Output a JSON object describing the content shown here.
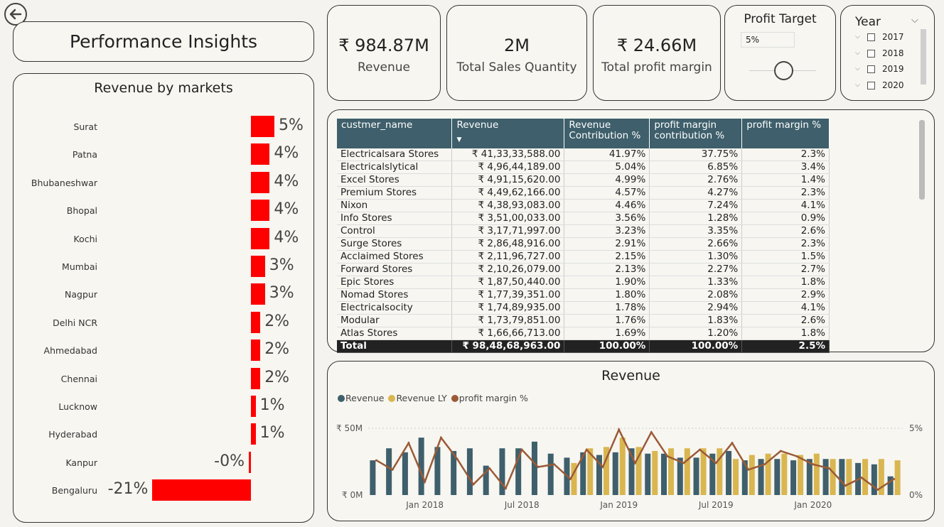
{
  "title": "Performance Insights",
  "markets": {
    "heading": "Revenue by markets",
    "rows": [
      {
        "name": "Surat",
        "value": 5,
        "label": "5%"
      },
      {
        "name": "Patna",
        "value": 4,
        "label": "4%"
      },
      {
        "name": "Bhubaneshwar",
        "value": 4,
        "label": "4%"
      },
      {
        "name": "Bhopal",
        "value": 4,
        "label": "4%"
      },
      {
        "name": "Kochi",
        "value": 4,
        "label": "4%"
      },
      {
        "name": "Mumbai",
        "value": 3,
        "label": "3%"
      },
      {
        "name": "Nagpur",
        "value": 3,
        "label": "3%"
      },
      {
        "name": "Delhi NCR",
        "value": 2,
        "label": "2%"
      },
      {
        "name": "Ahmedabad",
        "value": 2,
        "label": "2%"
      },
      {
        "name": "Chennai",
        "value": 2,
        "label": "2%"
      },
      {
        "name": "Lucknow",
        "value": 1,
        "label": "1%"
      },
      {
        "name": "Hyderabad",
        "value": 1,
        "label": "1%"
      },
      {
        "name": "Kanpur",
        "value": -0.3,
        "label": "-0%"
      },
      {
        "name": "Bengaluru",
        "value": -21,
        "label": "-21%"
      }
    ]
  },
  "kpis": [
    {
      "value": "₹ 984.87M",
      "label": "Revenue"
    },
    {
      "value": "2M",
      "label": "Total Sales Quantity"
    },
    {
      "value": "₹ 24.66M",
      "label": "Total profit margin"
    }
  ],
  "profit_target": {
    "title": "Profit Target",
    "value": "5%",
    "level": 0.5
  },
  "year_filter": {
    "title": "Year",
    "options": [
      "2017",
      "2018",
      "2019",
      "2020"
    ]
  },
  "table": {
    "headers": [
      "custmer_name",
      "Revenue",
      "Revenue Contribution %",
      "profit margin contribution %",
      "profit margin %"
    ],
    "rows": [
      [
        "Electricalsara Stores",
        "₹ 41,33,33,588.00",
        "41.97%",
        "37.75%",
        "2.3%"
      ],
      [
        "Electricalslytical",
        "₹ 4,96,44,189.00",
        "5.04%",
        "6.85%",
        "3.4%"
      ],
      [
        "Excel Stores",
        "₹ 4,91,15,620.00",
        "4.99%",
        "2.76%",
        "1.4%"
      ],
      [
        "Premium Stores",
        "₹ 4,49,62,166.00",
        "4.57%",
        "4.27%",
        "2.3%"
      ],
      [
        "Nixon",
        "₹ 4,38,93,083.00",
        "4.46%",
        "7.24%",
        "4.1%"
      ],
      [
        "Info Stores",
        "₹ 3,51,00,033.00",
        "3.56%",
        "1.28%",
        "0.9%"
      ],
      [
        "Control",
        "₹ 3,17,71,997.00",
        "3.23%",
        "3.35%",
        "2.6%"
      ],
      [
        "Surge Stores",
        "₹ 2,86,48,916.00",
        "2.91%",
        "2.66%",
        "2.3%"
      ],
      [
        "Acclaimed Stores",
        "₹ 2,11,96,727.00",
        "2.15%",
        "1.30%",
        "1.5%"
      ],
      [
        "Forward Stores",
        "₹ 2,10,26,079.00",
        "2.13%",
        "2.27%",
        "2.7%"
      ],
      [
        "Epic Stores",
        "₹ 1,87,50,440.00",
        "1.90%",
        "1.33%",
        "1.8%"
      ],
      [
        "Nomad Stores",
        "₹ 1,77,39,351.00",
        "1.80%",
        "2.08%",
        "2.9%"
      ],
      [
        "Electricalsocity",
        "₹ 1,74,89,935.00",
        "1.78%",
        "2.94%",
        "4.1%"
      ],
      [
        "Modular",
        "₹ 1,73,79,851.00",
        "1.76%",
        "1.83%",
        "2.6%"
      ],
      [
        "Atlas Stores",
        "₹ 1,66,66,713.00",
        "1.69%",
        "1.20%",
        "1.8%"
      ]
    ],
    "total": [
      "Total",
      "₹ 98,48,68,963.00",
      "100.00%",
      "100.00%",
      "2.5%"
    ]
  },
  "chart": {
    "title": "Revenue",
    "legend": [
      {
        "name": "Revenue",
        "color": "#3e5f6b"
      },
      {
        "name": "Revenue LY",
        "color": "#d9b650"
      },
      {
        "name": "profit margin %",
        "color": "#9b5a36"
      }
    ],
    "y_left_labels": [
      "₹ 50M",
      "₹ 0M"
    ],
    "y_right_labels": [
      "5%",
      "0%"
    ],
    "x_labels": [
      "Jan 2018",
      "Jul 2018",
      "Jan 2019",
      "Jul 2019",
      "Jan 2020"
    ]
  },
  "chart_data": {
    "type": "bar",
    "title": "Revenue",
    "x": [
      "Oct 2017",
      "Nov 2017",
      "Dec 2017",
      "Jan 2018",
      "Feb 2018",
      "Mar 2018",
      "Apr 2018",
      "May 2018",
      "Jun 2018",
      "Jul 2018",
      "Aug 2018",
      "Sep 2018",
      "Oct 2018",
      "Nov 2018",
      "Dec 2018",
      "Jan 2019",
      "Feb 2019",
      "Mar 2019",
      "Apr 2019",
      "May 2019",
      "Jun 2019",
      "Jul 2019",
      "Aug 2019",
      "Sep 2019",
      "Oct 2019",
      "Nov 2019",
      "Dec 2019",
      "Jan 2020",
      "Feb 2020",
      "Mar 2020",
      "Apr 2020",
      "May 2020",
      "Jun 2020"
    ],
    "series": [
      {
        "name": "Revenue",
        "values": [
          26,
          35,
          32,
          43,
          36,
          33,
          35,
          22,
          35,
          35,
          40,
          31,
          28,
          32,
          30,
          32,
          35,
          31,
          31,
          28,
          28,
          31,
          33,
          26,
          27,
          27,
          26,
          27,
          27,
          27,
          24,
          23,
          14
        ]
      },
      {
        "name": "Revenue LY",
        "values": [
          null,
          null,
          null,
          null,
          null,
          null,
          null,
          null,
          null,
          null,
          null,
          null,
          24,
          35,
          36,
          43,
          36,
          33,
          35,
          35,
          35,
          35,
          27,
          30,
          31,
          31,
          30,
          31,
          27,
          27,
          27,
          27,
          26
        ]
      },
      {
        "name": "profit margin %",
        "axis": "right",
        "values": [
          2.6,
          1.9,
          3.9,
          1.0,
          4.3,
          2.7,
          0.8,
          2.0,
          0.5,
          3.4,
          2.1,
          2.3,
          1.2,
          3.4,
          2.1,
          4.9,
          2.4,
          4.7,
          2.9,
          2.4,
          3.4,
          2.4,
          3.9,
          1.9,
          2.3,
          3.3,
          2.9,
          2.3,
          2.0,
          0.7,
          1.3,
          0.4,
          1.2
        ]
      }
    ],
    "ylabel": "",
    "ylim": [
      0,
      50
    ],
    "y2lim": [
      0,
      5
    ],
    "legend_position": "top-left"
  }
}
